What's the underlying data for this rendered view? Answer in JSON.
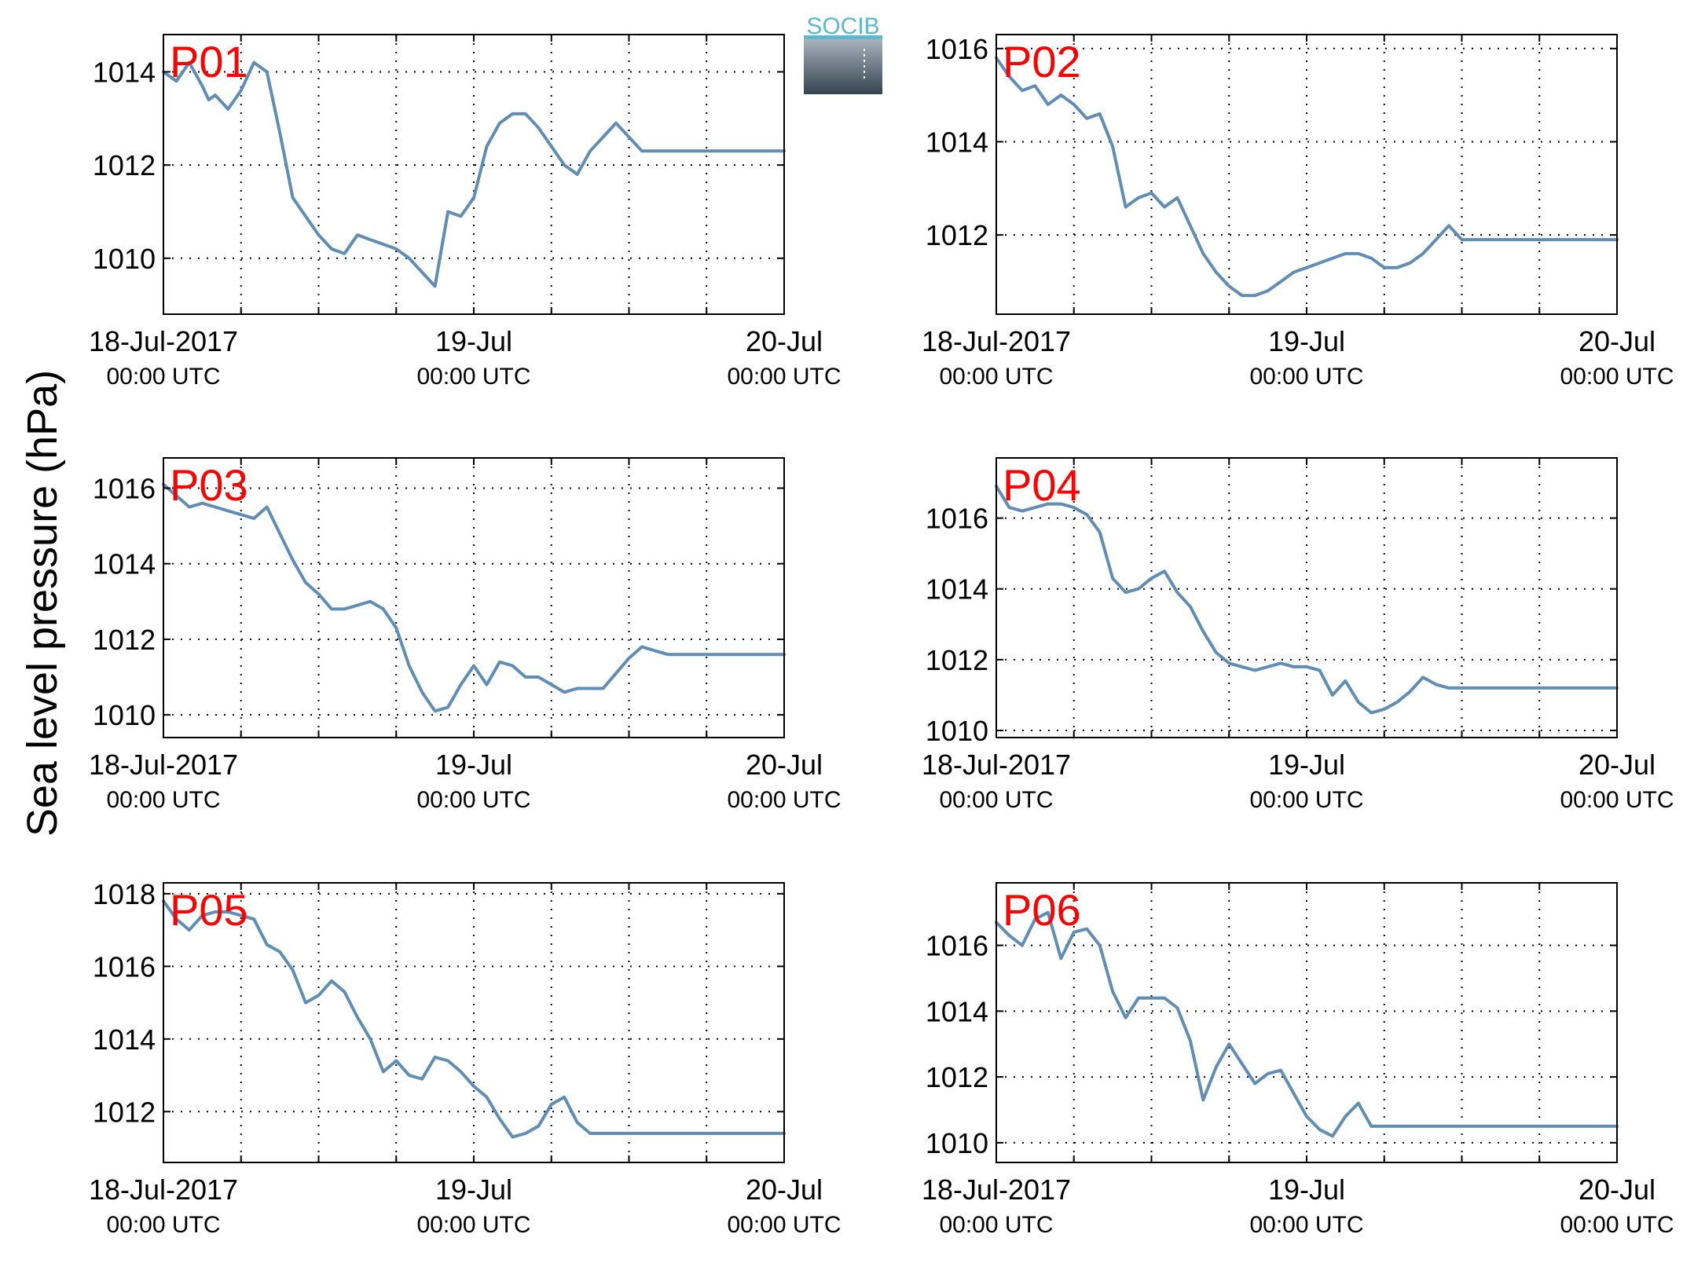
{
  "figure": {
    "ylabel": "Sea level pressure (hPa)",
    "logo_text": "SOCIB",
    "label_color": "#ff0000",
    "line_color": "#5f8db5"
  },
  "chart_data": [
    {
      "type": "line",
      "title": "P01",
      "x_range": [
        "2017-07-18 00:00",
        "2017-07-20 00:00"
      ],
      "x_ticks": [
        {
          "top": "18-Jul-2017",
          "bottom": "00:00 UTC"
        },
        {
          "top": "19-Jul",
          "bottom": "00:00 UTC"
        },
        {
          "top": "20-Jul",
          "bottom": "00:00 UTC"
        }
      ],
      "ylim": [
        1008.8,
        1014.8
      ],
      "yticks": [
        1010,
        1012,
        1014
      ],
      "grid": true,
      "series": [
        {
          "x": [
            0,
            1,
            2,
            3,
            3.5,
            4,
            5,
            6,
            7,
            8,
            9,
            10,
            11,
            12,
            13,
            14,
            15,
            16,
            17,
            18,
            19,
            20,
            21,
            22,
            23,
            24,
            25,
            26,
            27,
            28,
            29,
            30,
            31,
            32,
            33,
            34,
            35,
            36,
            37,
            38,
            39,
            40,
            41,
            42,
            43,
            44,
            45,
            46,
            47,
            48
          ],
          "y": [
            1014.0,
            1013.8,
            1014.2,
            1013.7,
            1013.4,
            1013.5,
            1013.2,
            1013.6,
            1014.2,
            1014.0,
            1012.7,
            1011.3,
            1010.9,
            1010.5,
            1010.2,
            1010.1,
            1010.5,
            1010.4,
            1010.3,
            1010.2,
            1010.0,
            1009.7,
            1009.4,
            1011.0,
            1010.9,
            1011.3,
            1012.4,
            1012.9,
            1013.1,
            1013.1,
            1012.8,
            1012.4,
            1012.0,
            1011.8,
            1012.3,
            1012.6,
            1012.9,
            1012.6,
            1012.3,
            1012.3,
            1012.3,
            1012.3,
            1012.3,
            1012.3,
            1012.3,
            1012.3,
            1012.3,
            1012.3,
            1012.3,
            1012.3
          ]
        }
      ]
    },
    {
      "type": "line",
      "title": "P02",
      "x_range": [
        "2017-07-18 00:00",
        "2017-07-20 00:00"
      ],
      "x_ticks": [
        {
          "top": "18-Jul-2017",
          "bottom": "00:00 UTC"
        },
        {
          "top": "19-Jul",
          "bottom": "00:00 UTC"
        },
        {
          "top": "20-Jul",
          "bottom": "00:00 UTC"
        }
      ],
      "ylim": [
        1010.3,
        1016.3
      ],
      "yticks": [
        1012,
        1014,
        1016
      ],
      "grid": true,
      "series": [
        {
          "x": [
            0,
            1,
            2,
            3,
            4,
            5,
            6,
            7,
            8,
            9,
            10,
            11,
            12,
            13,
            14,
            15,
            16,
            17,
            18,
            19,
            20,
            21,
            22,
            23,
            24,
            25,
            26,
            27,
            28,
            29,
            30,
            31,
            32,
            33,
            34,
            35,
            36,
            37,
            38,
            39,
            40,
            41,
            42,
            43,
            44,
            45,
            46,
            47,
            48
          ],
          "y": [
            1015.8,
            1015.4,
            1015.1,
            1015.2,
            1014.8,
            1015.0,
            1014.8,
            1014.5,
            1014.6,
            1013.9,
            1012.6,
            1012.8,
            1012.9,
            1012.6,
            1012.8,
            1012.2,
            1011.6,
            1011.2,
            1010.9,
            1010.7,
            1010.7,
            1010.8,
            1011.0,
            1011.2,
            1011.3,
            1011.4,
            1011.5,
            1011.6,
            1011.6,
            1011.5,
            1011.3,
            1011.3,
            1011.4,
            1011.6,
            1011.9,
            1012.2,
            1011.9,
            1011.9,
            1011.9,
            1011.9,
            1011.9,
            1011.9,
            1011.9,
            1011.9,
            1011.9,
            1011.9,
            1011.9,
            1011.9,
            1011.9
          ]
        }
      ]
    },
    {
      "type": "line",
      "title": "P03",
      "x_range": [
        "2017-07-18 00:00",
        "2017-07-20 00:00"
      ],
      "x_ticks": [
        {
          "top": "18-Jul-2017",
          "bottom": "00:00 UTC"
        },
        {
          "top": "19-Jul",
          "bottom": "00:00 UTC"
        },
        {
          "top": "20-Jul",
          "bottom": "00:00 UTC"
        }
      ],
      "ylim": [
        1009.4,
        1016.8
      ],
      "yticks": [
        1010,
        1012,
        1014,
        1016
      ],
      "grid": true,
      "series": [
        {
          "x": [
            0,
            1,
            2,
            3,
            4,
            5,
            6,
            7,
            8,
            9,
            10,
            11,
            12,
            13,
            14,
            15,
            16,
            17,
            18,
            19,
            20,
            21,
            22,
            23,
            24,
            25,
            26,
            27,
            28,
            29,
            30,
            31,
            32,
            33,
            34,
            35,
            36,
            37,
            38,
            39,
            40,
            41,
            42,
            43,
            44,
            45,
            46,
            47,
            48
          ],
          "y": [
            1016.1,
            1015.8,
            1015.5,
            1015.6,
            1015.5,
            1015.4,
            1015.3,
            1015.2,
            1015.5,
            1014.8,
            1014.1,
            1013.5,
            1013.2,
            1012.8,
            1012.8,
            1012.9,
            1013.0,
            1012.8,
            1012.3,
            1011.3,
            1010.6,
            1010.1,
            1010.2,
            1010.8,
            1011.3,
            1010.8,
            1011.4,
            1011.3,
            1011.0,
            1011.0,
            1010.8,
            1010.6,
            1010.7,
            1010.7,
            1010.7,
            1011.1,
            1011.5,
            1011.8,
            1011.7,
            1011.6,
            1011.6,
            1011.6,
            1011.6,
            1011.6,
            1011.6,
            1011.6,
            1011.6,
            1011.6,
            1011.6
          ]
        }
      ]
    },
    {
      "type": "line",
      "title": "P04",
      "x_range": [
        "2017-07-18 00:00",
        "2017-07-20 00:00"
      ],
      "x_ticks": [
        {
          "top": "18-Jul-2017",
          "bottom": "00:00 UTC"
        },
        {
          "top": "19-Jul",
          "bottom": "00:00 UTC"
        },
        {
          "top": "20-Jul",
          "bottom": "00:00 UTC"
        }
      ],
      "ylim": [
        1009.8,
        1017.7
      ],
      "yticks": [
        1010,
        1012,
        1014,
        1016
      ],
      "grid": true,
      "series": [
        {
          "x": [
            0,
            1,
            2,
            3,
            4,
            5,
            6,
            7,
            8,
            9,
            10,
            11,
            12,
            13,
            14,
            15,
            16,
            17,
            18,
            19,
            20,
            21,
            22,
            23,
            24,
            25,
            26,
            27,
            28,
            29,
            30,
            31,
            32,
            33,
            34,
            35,
            36,
            37,
            38,
            39,
            40,
            41,
            42,
            43,
            44,
            45,
            46,
            47,
            48
          ],
          "y": [
            1016.9,
            1016.3,
            1016.2,
            1016.3,
            1016.4,
            1016.4,
            1016.3,
            1016.1,
            1015.6,
            1014.3,
            1013.9,
            1014.0,
            1014.3,
            1014.5,
            1013.9,
            1013.5,
            1012.8,
            1012.2,
            1011.9,
            1011.8,
            1011.7,
            1011.8,
            1011.9,
            1011.8,
            1011.8,
            1011.7,
            1011.0,
            1011.4,
            1010.8,
            1010.5,
            1010.6,
            1010.8,
            1011.1,
            1011.5,
            1011.3,
            1011.2,
            1011.2,
            1011.2,
            1011.2,
            1011.2,
            1011.2,
            1011.2,
            1011.2,
            1011.2,
            1011.2,
            1011.2,
            1011.2,
            1011.2,
            1011.2
          ]
        }
      ]
    },
    {
      "type": "line",
      "title": "P05",
      "x_range": [
        "2017-07-18 00:00",
        "2017-07-20 00:00"
      ],
      "x_ticks": [
        {
          "top": "18-Jul-2017",
          "bottom": "00:00 UTC"
        },
        {
          "top": "19-Jul",
          "bottom": "00:00 UTC"
        },
        {
          "top": "20-Jul",
          "bottom": "00:00 UTC"
        }
      ],
      "ylim": [
        1010.6,
        1018.3
      ],
      "yticks": [
        1012,
        1014,
        1016,
        1018
      ],
      "grid": true,
      "series": [
        {
          "x": [
            0,
            1,
            2,
            3,
            4,
            5,
            6,
            7,
            8,
            9,
            10,
            11,
            12,
            13,
            14,
            15,
            16,
            17,
            18,
            19,
            20,
            21,
            22,
            23,
            24,
            25,
            26,
            27,
            28,
            29,
            30,
            31,
            32,
            33,
            34,
            35,
            36,
            37,
            38,
            39,
            40,
            41,
            42,
            43,
            44,
            45,
            46,
            47,
            48
          ],
          "y": [
            1017.8,
            1017.3,
            1017.0,
            1017.4,
            1017.5,
            1017.5,
            1017.4,
            1017.3,
            1016.6,
            1016.4,
            1015.9,
            1015.0,
            1015.2,
            1015.6,
            1015.3,
            1014.6,
            1014.0,
            1013.1,
            1013.4,
            1013.0,
            1012.9,
            1013.5,
            1013.4,
            1013.1,
            1012.7,
            1012.4,
            1011.8,
            1011.3,
            1011.4,
            1011.6,
            1012.2,
            1012.4,
            1011.7,
            1011.4,
            1011.4,
            1011.4,
            1011.4,
            1011.4,
            1011.4,
            1011.4,
            1011.4,
            1011.4,
            1011.4,
            1011.4,
            1011.4,
            1011.4,
            1011.4,
            1011.4,
            1011.4
          ]
        }
      ]
    },
    {
      "type": "line",
      "title": "P06",
      "x_range": [
        "2017-07-18 00:00",
        "2017-07-20 00:00"
      ],
      "x_ticks": [
        {
          "top": "18-Jul-2017",
          "bottom": "00:00 UTC"
        },
        {
          "top": "19-Jul",
          "bottom": "00:00 UTC"
        },
        {
          "top": "20-Jul",
          "bottom": "00:00 UTC"
        }
      ],
      "ylim": [
        1009.4,
        1017.9
      ],
      "yticks": [
        1010,
        1012,
        1014,
        1016
      ],
      "grid": true,
      "series": [
        {
          "x": [
            0,
            1,
            2,
            3,
            4,
            5,
            6,
            7,
            8,
            9,
            10,
            11,
            12,
            13,
            14,
            15,
            16,
            17,
            18,
            19,
            20,
            21,
            22,
            23,
            24,
            25,
            26,
            27,
            28,
            29,
            30,
            31,
            32,
            33,
            34,
            35,
            36,
            37,
            38,
            39,
            40,
            41,
            42,
            43,
            44,
            45,
            46,
            47,
            48
          ],
          "y": [
            1016.7,
            1016.3,
            1016.0,
            1016.8,
            1017.0,
            1015.6,
            1016.4,
            1016.5,
            1016.0,
            1014.6,
            1013.8,
            1014.4,
            1014.4,
            1014.4,
            1014.1,
            1013.1,
            1011.3,
            1012.3,
            1013.0,
            1012.4,
            1011.8,
            1012.1,
            1012.2,
            1011.5,
            1010.8,
            1010.4,
            1010.2,
            1010.8,
            1011.2,
            1010.5,
            1010.5,
            1010.5,
            1010.5,
            1010.5,
            1010.5,
            1010.5,
            1010.5,
            1010.5,
            1010.5,
            1010.5,
            1010.5,
            1010.5,
            1010.5,
            1010.5,
            1010.5,
            1010.5,
            1010.5,
            1010.5,
            1010.5
          ]
        }
      ]
    }
  ]
}
